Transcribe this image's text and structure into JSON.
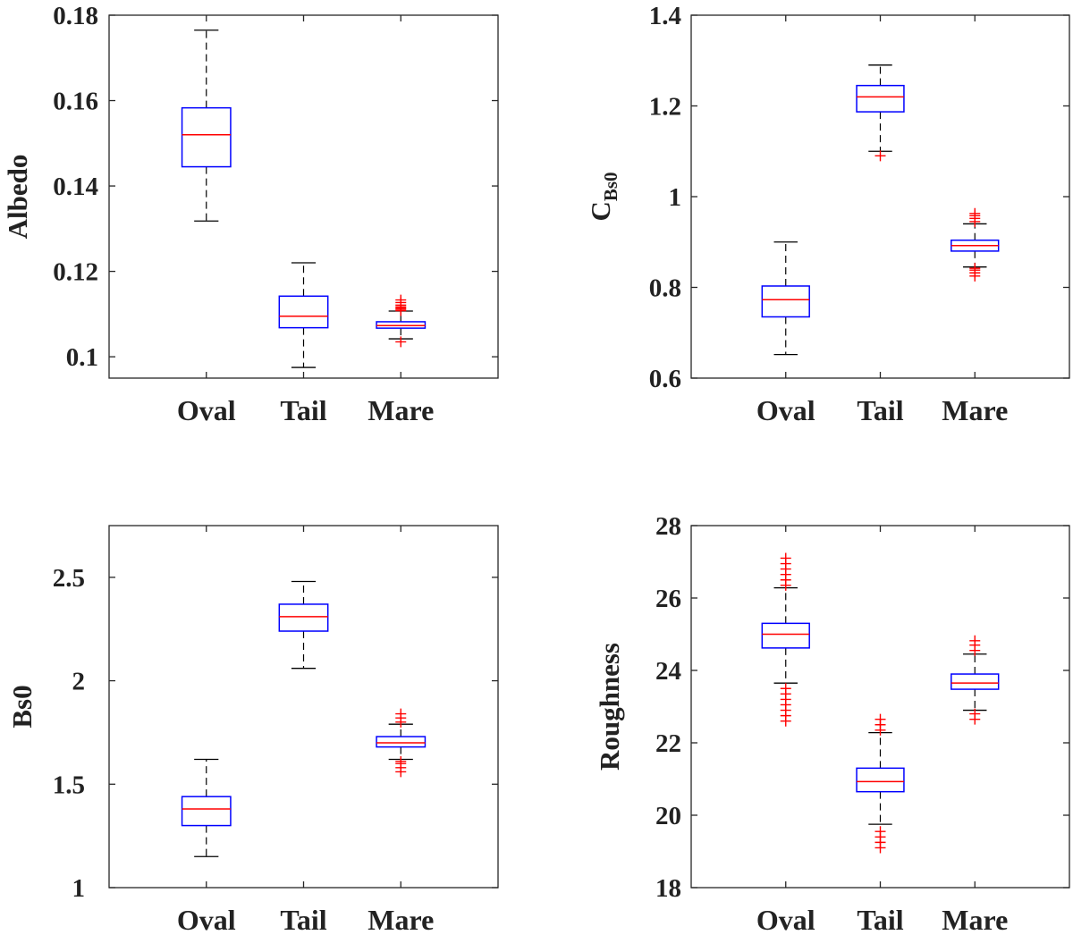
{
  "colors": {
    "box": "#0000ff",
    "median": "#ff0000",
    "whisker": "#000000",
    "outlier": "#ff0000",
    "axis": "#262626"
  },
  "chart_data": [
    {
      "type": "boxplot",
      "ylabel": "Albedo",
      "categories": [
        "Oval",
        "Tail",
        "Mare"
      ],
      "ylim": [
        0.095,
        0.18
      ],
      "yticks": [
        0.1,
        0.12,
        0.14,
        0.16,
        0.18
      ],
      "ytick_labels": [
        "0.1",
        "0.12",
        "0.14",
        "0.16",
        "0.18"
      ],
      "boxes": [
        {
          "min": 0.1318,
          "q1": 0.1445,
          "median": 0.152,
          "q3": 0.1583,
          "max": 0.1765,
          "outliers": []
        },
        {
          "min": 0.0975,
          "q1": 0.1068,
          "median": 0.1095,
          "q3": 0.1142,
          "max": 0.122,
          "outliers": []
        },
        {
          "min": 0.1042,
          "q1": 0.1067,
          "median": 0.1073,
          "q3": 0.1082,
          "max": 0.1107,
          "outliers": [
            0.1035,
            0.1108,
            0.1111,
            0.1114,
            0.1117,
            0.1121,
            0.1127,
            0.1133
          ]
        }
      ]
    },
    {
      "type": "boxplot",
      "ylabel": "C",
      "ylabel_subscript": "Bs0",
      "categories": [
        "Oval",
        "Tail",
        "Mare"
      ],
      "ylim": [
        0.6,
        1.4
      ],
      "yticks": [
        0.6,
        0.8,
        1.0,
        1.2,
        1.4
      ],
      "ytick_labels": [
        "0.6",
        "0.8",
        "1",
        "1.2",
        "1.4"
      ],
      "boxes": [
        {
          "min": 0.652,
          "q1": 0.735,
          "median": 0.773,
          "q3": 0.803,
          "max": 0.9,
          "outliers": []
        },
        {
          "min": 1.1,
          "q1": 1.187,
          "median": 1.22,
          "q3": 1.245,
          "max": 1.29,
          "outliers": [
            1.09
          ]
        },
        {
          "min": 0.845,
          "q1": 0.88,
          "median": 0.892,
          "q3": 0.904,
          "max": 0.94,
          "outliers": [
            0.825,
            0.832,
            0.838,
            0.842,
            0.945,
            0.952,
            0.958,
            0.963
          ]
        }
      ]
    },
    {
      "type": "boxplot",
      "ylabel": "Bs0",
      "categories": [
        "Oval",
        "Tail",
        "Mare"
      ],
      "ylim": [
        1.0,
        2.75
      ],
      "yticks": [
        1.0,
        1.5,
        2.0,
        2.5
      ],
      "ytick_labels": [
        "1",
        "1.5",
        "2",
        "2.5"
      ],
      "boxes": [
        {
          "min": 1.15,
          "q1": 1.3,
          "median": 1.38,
          "q3": 1.44,
          "max": 1.62,
          "outliers": []
        },
        {
          "min": 2.06,
          "q1": 2.24,
          "median": 2.31,
          "q3": 2.37,
          "max": 2.48,
          "outliers": []
        },
        {
          "min": 1.62,
          "q1": 1.68,
          "median": 1.7,
          "q3": 1.73,
          "max": 1.79,
          "outliers": [
            1.56,
            1.58,
            1.6,
            1.61,
            1.8,
            1.82,
            1.84
          ]
        }
      ]
    },
    {
      "type": "boxplot",
      "ylabel": "Roughness",
      "categories": [
        "Oval",
        "Tail",
        "Mare"
      ],
      "ylim": [
        18,
        28
      ],
      "yticks": [
        18,
        20,
        22,
        24,
        26,
        28
      ],
      "ytick_labels": [
        "18",
        "20",
        "22",
        "24",
        "26",
        "28"
      ],
      "boxes": [
        {
          "min": 23.65,
          "q1": 24.62,
          "median": 25.0,
          "q3": 25.3,
          "max": 26.28,
          "outliers": [
            22.6,
            22.75,
            22.9,
            23.05,
            23.2,
            23.35,
            23.5,
            26.35,
            26.5,
            26.65,
            26.8,
            26.95,
            27.1
          ]
        },
        {
          "min": 19.75,
          "q1": 20.65,
          "median": 20.93,
          "q3": 21.3,
          "max": 22.28,
          "outliers": [
            19.1,
            19.25,
            19.4,
            19.55,
            22.35,
            22.5,
            22.65
          ]
        },
        {
          "min": 22.9,
          "q1": 23.48,
          "median": 23.65,
          "q3": 23.9,
          "max": 24.45,
          "outliers": [
            22.65,
            22.8,
            24.55,
            24.7,
            24.82
          ]
        }
      ]
    }
  ]
}
